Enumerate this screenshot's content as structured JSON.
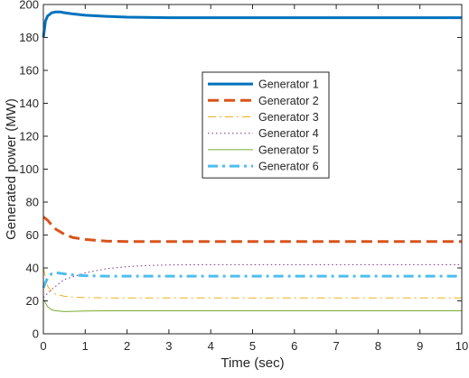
{
  "chart_data": {
    "type": "line",
    "title": "",
    "xlabel": "Time (sec)",
    "ylabel": "Generated power (MW)",
    "xlim": [
      0,
      10
    ],
    "ylim": [
      0,
      200
    ],
    "xticks": [
      0,
      1,
      2,
      3,
      4,
      5,
      6,
      7,
      8,
      9,
      10
    ],
    "yticks": [
      0,
      20,
      40,
      60,
      80,
      100,
      120,
      140,
      160,
      180,
      200
    ],
    "grid": false,
    "legend_position": "center",
    "series": [
      {
        "name": "Generator 1",
        "color": "#0072bd",
        "dash": "solid",
        "width": 3,
        "x": [
          0,
          0.05,
          0.1,
          0.2,
          0.3,
          0.4,
          0.5,
          0.7,
          1,
          1.5,
          2,
          3,
          5,
          10
        ],
        "y": [
          180,
          190,
          193,
          195,
          195.5,
          195.5,
          195,
          194.3,
          193.5,
          192.8,
          192.3,
          192,
          192,
          192
        ]
      },
      {
        "name": "Generator 2",
        "color": "#d95319",
        "dash": "dashed",
        "width": 3,
        "x": [
          0,
          0.1,
          0.2,
          0.3,
          0.5,
          0.7,
          1,
          1.5,
          2,
          3,
          4,
          10
        ],
        "y": [
          71,
          69,
          66,
          63.5,
          60.5,
          58.5,
          57.3,
          56.3,
          56,
          56,
          56,
          56
        ]
      },
      {
        "name": "Generator 3",
        "color": "#edb120",
        "dash": "dashdot",
        "width": 1,
        "x": [
          0,
          0.1,
          0.2,
          0.3,
          0.5,
          0.7,
          1,
          1.5,
          2,
          3,
          10
        ],
        "y": [
          40,
          29,
          25.5,
          24,
          22.8,
          22.3,
          22,
          21.8,
          21.8,
          21.8,
          21.8
        ]
      },
      {
        "name": "Generator 4",
        "color": "#7e2f8e",
        "dash": "dotted",
        "width": 1,
        "x": [
          0,
          0.2,
          0.5,
          1,
          1.5,
          2,
          2.5,
          3,
          4,
          5,
          10
        ],
        "y": [
          22,
          27,
          33,
          37,
          39.5,
          40.8,
          41.5,
          41.8,
          42,
          42,
          42
        ]
      },
      {
        "name": "Generator 5",
        "color": "#77ac30",
        "dash": "solid",
        "width": 1,
        "x": [
          0,
          0.1,
          0.2,
          0.3,
          0.5,
          1,
          1.5,
          2,
          3,
          10
        ],
        "y": [
          21,
          16.5,
          14.5,
          14,
          13.5,
          13.8,
          14,
          14,
          14,
          14
        ]
      },
      {
        "name": "Generator 6",
        "color": "#4dbeee",
        "dash": "dashdot",
        "width": 3,
        "x": [
          0,
          0.1,
          0.2,
          0.3,
          0.4,
          0.5,
          0.7,
          1,
          1.5,
          2,
          10
        ],
        "y": [
          28,
          34,
          36.5,
          37,
          36.8,
          36.4,
          35.8,
          35.3,
          35,
          35,
          35
        ]
      }
    ]
  }
}
